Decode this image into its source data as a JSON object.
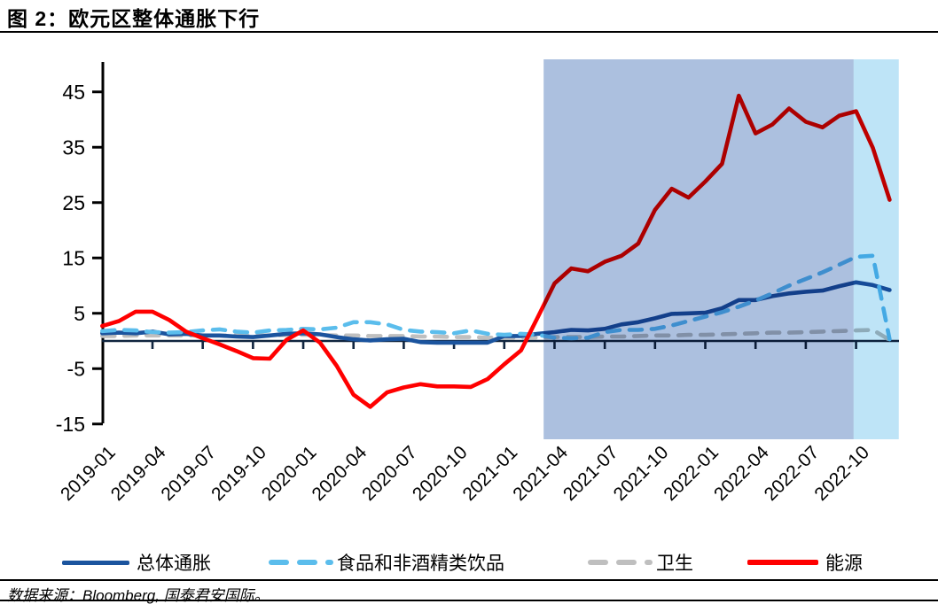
{
  "title": "图 2：欧元区整体通胀下行",
  "source": "数据来源：Bloomberg, 国泰君安国际。",
  "chart_data": {
    "type": "line",
    "title": "欧元区整体通胀下行",
    "x_unit": "month",
    "x_start": "2019-01",
    "x_end": "2022-12",
    "x_tick_labels": [
      "2019-01",
      "2019-04",
      "2019-07",
      "2019-10",
      "2020-01",
      "2020-04",
      "2020-07",
      "2020-10",
      "2021-01",
      "2021-04",
      "2021-07",
      "2021-10",
      "2022-01",
      "2022-04",
      "2022-07",
      "2022-10"
    ],
    "y_ticks": [
      45,
      35,
      25,
      15,
      5,
      -5,
      -15
    ],
    "ylim": [
      -15,
      50
    ],
    "grid": false,
    "legend_position": "bottom",
    "axis_color": "#10253F",
    "y_axis_color": "#000000",
    "series": [
      {
        "name": "总体通胀",
        "style": "solid",
        "color": "#1B549E",
        "values": [
          1.4,
          1.5,
          1.4,
          1.7,
          1.2,
          1.3,
          1.0,
          1.0,
          0.8,
          0.7,
          1.0,
          1.3,
          1.4,
          1.2,
          0.7,
          0.3,
          0.1,
          0.3,
          0.4,
          -0.2,
          -0.3,
          -0.3,
          -0.3,
          -0.3,
          0.9,
          0.9,
          1.3,
          1.6,
          2.0,
          1.9,
          2.2,
          3.0,
          3.4,
          4.1,
          4.9,
          5.0,
          5.1,
          5.9,
          7.4,
          7.4,
          8.1,
          8.6,
          8.9,
          9.1,
          9.9,
          10.6,
          10.1,
          9.2
        ]
      },
      {
        "name": "食品和非酒精类饮品",
        "style": "dashed",
        "color": "#5BBDEC",
        "values": [
          1.8,
          2.0,
          1.9,
          1.6,
          1.5,
          1.6,
          1.9,
          2.1,
          1.7,
          1.5,
          1.9,
          2.0,
          2.2,
          2.1,
          2.4,
          3.4,
          3.4,
          3.0,
          2.0,
          1.7,
          1.6,
          1.4,
          1.9,
          1.3,
          1.1,
          1.3,
          1.1,
          0.6,
          0.5,
          0.6,
          1.6,
          2.0,
          2.0,
          2.2,
          2.8,
          3.6,
          4.4,
          5.2,
          6.2,
          7.3,
          8.6,
          10.0,
          11.2,
          12.4,
          13.8,
          15.2,
          15.4,
          0.3
        ]
      },
      {
        "name": "卫生",
        "style": "dashed",
        "color": "#BFBFBF",
        "values": [
          0.9,
          0.9,
          1.0,
          1.0,
          1.0,
          1.0,
          1.0,
          1.0,
          1.0,
          1.0,
          1.0,
          1.1,
          1.1,
          1.1,
          1.0,
          1.0,
          0.9,
          0.9,
          0.9,
          0.8,
          0.8,
          0.7,
          0.7,
          0.6,
          0.6,
          0.6,
          0.6,
          0.7,
          0.7,
          0.7,
          0.8,
          0.8,
          0.9,
          1.0,
          1.0,
          1.1,
          1.1,
          1.2,
          1.3,
          1.4,
          1.5,
          1.5,
          1.6,
          1.7,
          1.8,
          1.9,
          2.0,
          0.2
        ]
      },
      {
        "name": "能源",
        "style": "solid",
        "color": "#FF0000",
        "values": [
          2.7,
          3.6,
          5.3,
          5.3,
          3.8,
          1.7,
          0.5,
          -0.6,
          -1.8,
          -3.1,
          -3.2,
          0.2,
          1.9,
          -0.3,
          -4.5,
          -9.7,
          -11.9,
          -9.3,
          -8.4,
          -7.8,
          -8.2,
          -8.2,
          -8.3,
          -6.9,
          -4.2,
          -1.7,
          4.3,
          10.4,
          13.1,
          12.6,
          14.3,
          15.4,
          17.6,
          23.7,
          27.5,
          25.9,
          28.8,
          32.0,
          44.3,
          37.5,
          39.1,
          42.0,
          39.6,
          38.6,
          40.7,
          41.5,
          34.9,
          25.5
        ]
      }
    ],
    "shaded_regions": [
      {
        "label": "highlight-band-dark",
        "from": "2021-03",
        "to": "2022-10",
        "from_month_index": 26.35,
        "to_month_index": 44.85,
        "color": "#8CA8D2",
        "opacity": 0.72
      },
      {
        "label": "highlight-band-light",
        "from": "2022-10",
        "to": "2022-12",
        "from_month_index": 44.85,
        "to_month_index": 47.55,
        "color": "#AEDDF5",
        "opacity": 0.8
      }
    ]
  },
  "legend": {
    "items": [
      {
        "label": "总体通胀"
      },
      {
        "label": "食品和非酒精类饮品"
      },
      {
        "label": "卫生"
      },
      {
        "label": "能源"
      }
    ]
  }
}
